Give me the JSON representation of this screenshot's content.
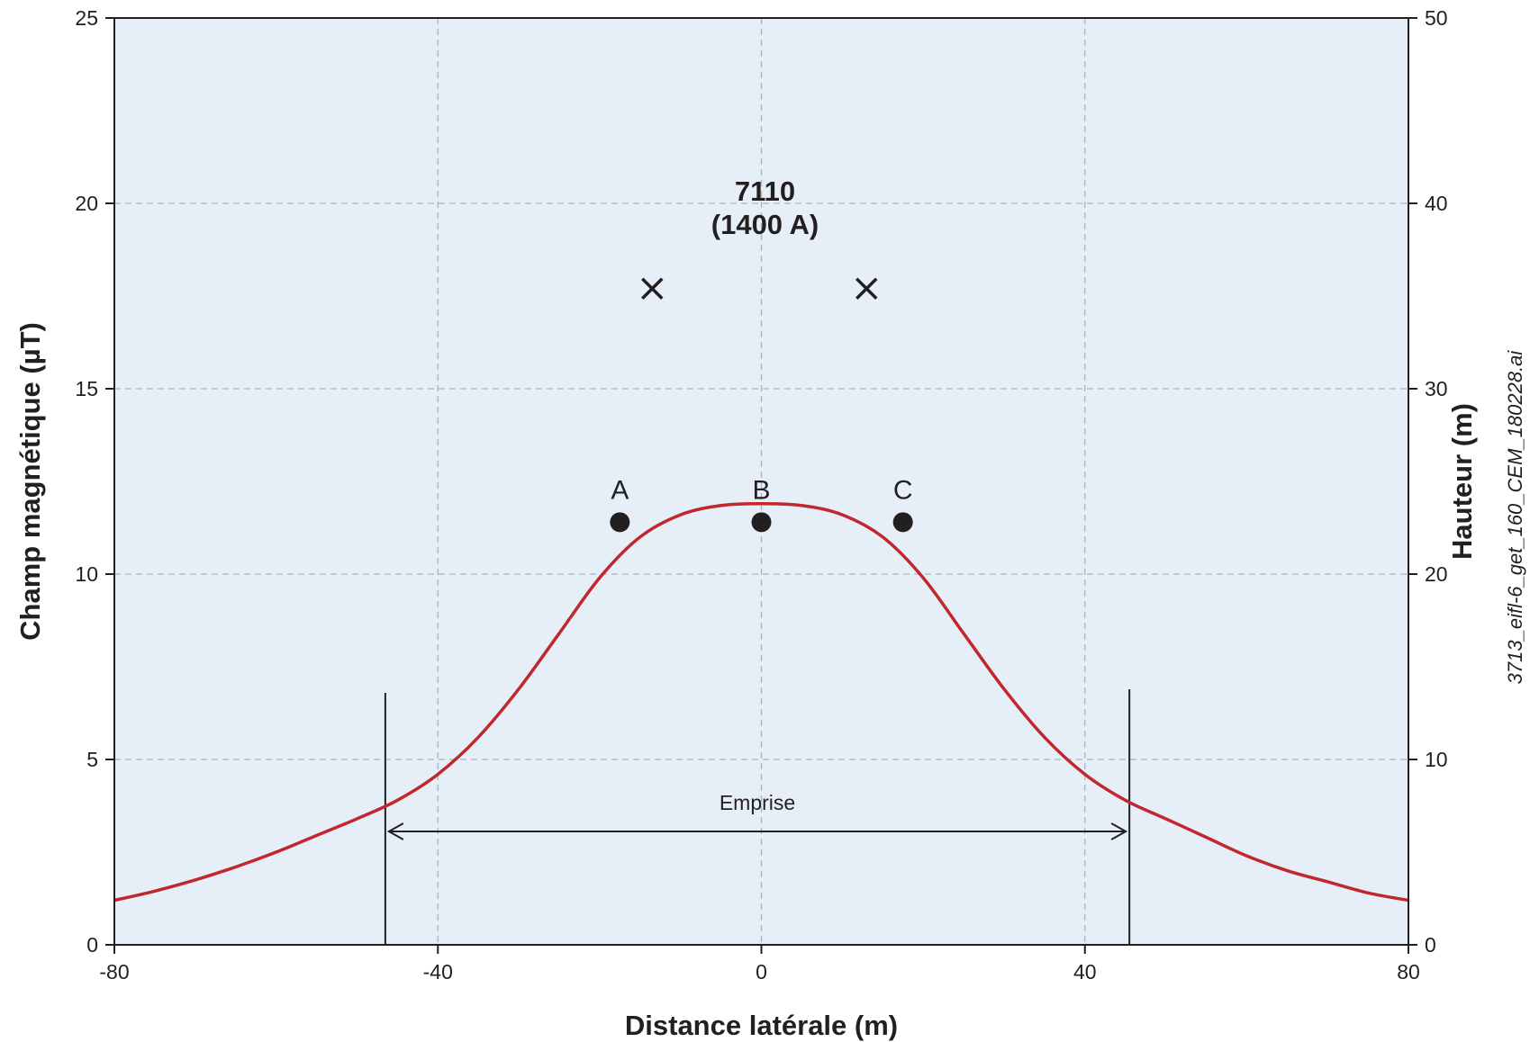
{
  "chart_data": {
    "type": "line",
    "xlabel": "Distance latérale (m)",
    "ylabel": "Champ magnétique (µT)",
    "y2label": "Hauteur (m)",
    "xlim": [
      -80,
      80
    ],
    "ylim": [
      0,
      25
    ],
    "y2lim": [
      0,
      50
    ],
    "xticks": [
      "-80",
      "-40",
      "0",
      "40",
      "80"
    ],
    "yticks": [
      "0",
      "5",
      "10",
      "15",
      "20",
      "25"
    ],
    "y2ticks": [
      "0",
      "10",
      "20",
      "30",
      "40",
      "50"
    ],
    "grid": true,
    "background_color": "#e6eff7",
    "series": [
      {
        "color": "#c1272d",
        "x": [
          -80,
          -75,
          -70,
          -65,
          -60,
          -55,
          -50,
          -45,
          -40,
          -35,
          -30,
          -25,
          -20,
          -15,
          -10,
          -5,
          0,
          5,
          10,
          15,
          20,
          25,
          30,
          35,
          40,
          45,
          50,
          55,
          60,
          65,
          70,
          75,
          80
        ],
        "y": [
          1.2,
          1.45,
          1.75,
          2.1,
          2.5,
          2.95,
          3.4,
          3.9,
          4.6,
          5.6,
          6.9,
          8.4,
          9.9,
          11.0,
          11.6,
          11.85,
          11.9,
          11.85,
          11.6,
          11.0,
          9.9,
          8.4,
          6.9,
          5.6,
          4.6,
          3.9,
          3.4,
          2.9,
          2.4,
          2.0,
          1.7,
          1.4,
          1.2
        ]
      }
    ],
    "conductor_markers": [
      {
        "symbol": "x",
        "x": -13.5,
        "height": 35.4
      },
      {
        "symbol": "x",
        "x": 13.0,
        "height": 35.4
      }
    ],
    "measurement_points": [
      {
        "label": "A",
        "x": -17.5,
        "height": 22.8
      },
      {
        "label": "B",
        "x": 0,
        "height": 22.8
      },
      {
        "label": "C",
        "x": 17.5,
        "height": 22.8
      }
    ],
    "annotations": {
      "line_title": "7110",
      "line_current": "(1400 A)",
      "emprise": "Emprise",
      "emprise_from": -46.5,
      "emprise_to": 45.5
    },
    "file_label": "3713_eifl-6_get_160_CEM_180228.ai"
  }
}
